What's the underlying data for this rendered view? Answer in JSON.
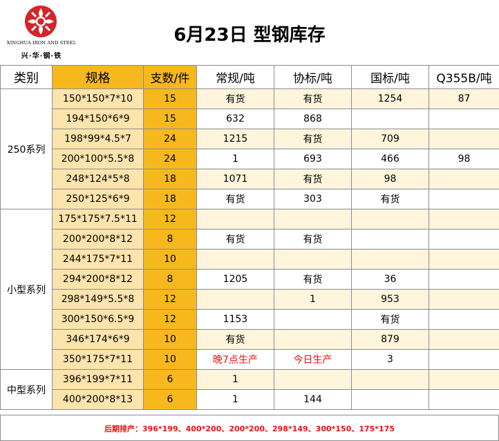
{
  "header": {
    "title": "6月23日 型钢库存",
    "logo_en": "XINGHUA IRON AND STEEL",
    "logo_cn": "兴·华·钢·铁",
    "brand_color": "#d2262b"
  },
  "table": {
    "columns": [
      "类别",
      "规格",
      "支数/件",
      "常规/吨",
      "协标/吨",
      "国标/吨",
      "Q355B/吨"
    ],
    "categories": [
      "250系列",
      "小型系列",
      "中型系列"
    ],
    "rows": [
      {
        "spec": "150*150*7*10",
        "qty": "15",
        "regular": "有货",
        "assoc": "有货",
        "national": "1254",
        "q355b": "87"
      },
      {
        "spec": "194*150*6*9",
        "qty": "15",
        "regular": "632",
        "assoc": "868",
        "national": "",
        "q355b": ""
      },
      {
        "spec": "198*99*4.5*7",
        "qty": "24",
        "regular": "1215",
        "assoc": "有货",
        "national": "709",
        "q355b": ""
      },
      {
        "spec": "200*100*5.5*8",
        "qty": "24",
        "regular": "1",
        "assoc": "693",
        "national": "466",
        "q355b": "98"
      },
      {
        "spec": "248*124*5*8",
        "qty": "18",
        "regular": "1071",
        "assoc": "有货",
        "national": "98",
        "q355b": ""
      },
      {
        "spec": "250*125*6*9",
        "qty": "18",
        "regular": "有货",
        "assoc": "303",
        "national": "有货",
        "q355b": ""
      },
      {
        "spec": "175*175*7.5*11",
        "qty": "12",
        "regular": "",
        "assoc": "",
        "national": "",
        "q355b": ""
      },
      {
        "spec": "200*200*8*12",
        "qty": "8",
        "regular": "有货",
        "assoc": "有货",
        "national": "",
        "q355b": ""
      },
      {
        "spec": "244*175*7*11",
        "qty": "10",
        "regular": "",
        "assoc": "",
        "national": "",
        "q355b": ""
      },
      {
        "spec": "294*200*8*12",
        "qty": "8",
        "regular": "1205",
        "assoc": "有货",
        "national": "36",
        "q355b": ""
      },
      {
        "spec": "298*149*5.5*8",
        "qty": "12",
        "regular": "",
        "assoc": "1",
        "national": "953",
        "q355b": ""
      },
      {
        "spec": "300*150*6.5*9",
        "qty": "12",
        "regular": "1153",
        "assoc": "",
        "national": "有货",
        "q355b": ""
      },
      {
        "spec": "346*174*6*9",
        "qty": "10",
        "regular": "有货",
        "assoc": "",
        "national": "879",
        "q355b": ""
      },
      {
        "spec": "350*175*7*11",
        "qty": "10",
        "regular": "晚7点生产",
        "assoc": "今日生产",
        "national": "3",
        "q355b": ""
      },
      {
        "spec": "396*199*7*11",
        "qty": "6",
        "regular": "1",
        "assoc": "",
        "national": "",
        "q355b": ""
      },
      {
        "spec": "400*200*8*13",
        "qty": "6",
        "regular": "1",
        "assoc": "144",
        "national": "",
        "q355b": ""
      }
    ]
  },
  "footer": {
    "note": "后期排产：396*199、400*200、200*200、298*149、300*150、175*175"
  },
  "colors": {
    "header_gold": "#f7b81e",
    "spec_bg": "#fde3ac",
    "alt_row_bg": "#fff5dd",
    "highlight_red": "#e8120c"
  }
}
